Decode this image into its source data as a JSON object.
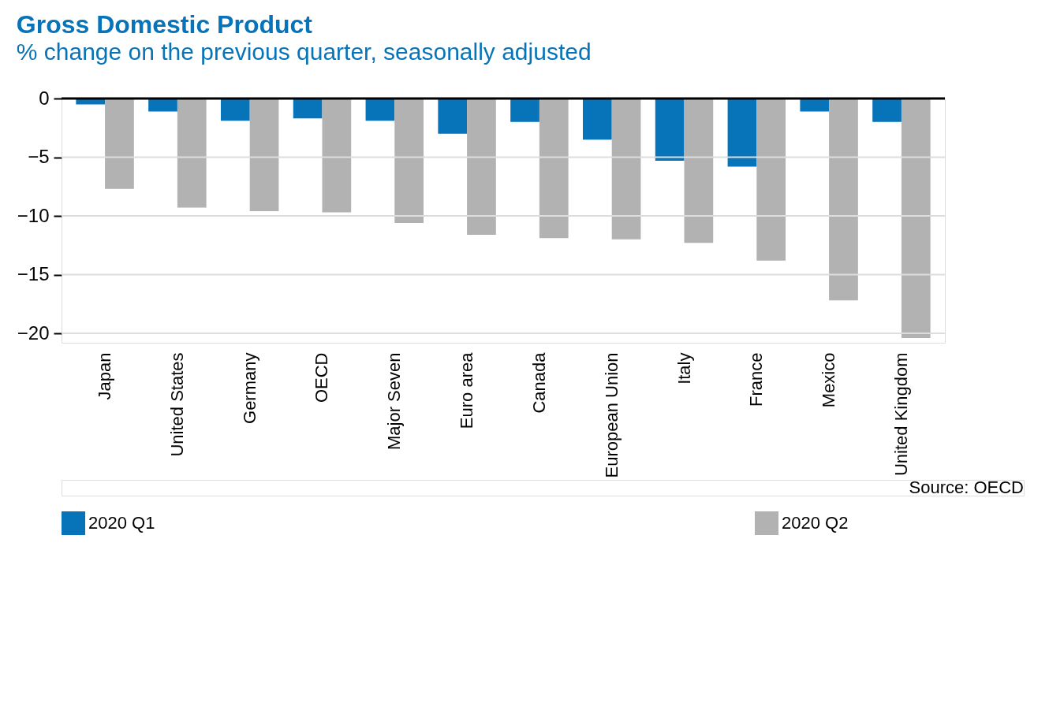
{
  "chart_data": {
    "type": "bar",
    "title": "Gross Domestic Product",
    "subtitle": "% change on the previous quarter, seasonally adjusted",
    "categories": [
      "Japan",
      "United States",
      "Germany",
      "OECD",
      "Major Seven",
      "Euro area",
      "Canada",
      "European Union",
      "Italy",
      "France",
      "Mexico",
      "United Kingdom"
    ],
    "series": [
      {
        "name": "2020 Q1",
        "color": "#0773b8",
        "values": [
          -0.5,
          -1.1,
          -1.9,
          -1.7,
          -1.9,
          -3.0,
          -2.0,
          -3.5,
          -5.3,
          -5.8,
          -1.1,
          -2.0
        ]
      },
      {
        "name": "2020 Q2",
        "color": "#b2b2b2",
        "values": [
          -7.7,
          -9.3,
          -9.6,
          -9.7,
          -10.6,
          -11.6,
          -11.9,
          -12.0,
          -12.3,
          -13.8,
          -17.2,
          -20.4
        ]
      }
    ],
    "ylim": [
      -20.8,
      0
    ],
    "yticks": [
      0,
      -5,
      -10,
      -15,
      -20
    ],
    "grid": "y",
    "legend": "bottom",
    "annotations": [
      "Source: OECD"
    ]
  }
}
